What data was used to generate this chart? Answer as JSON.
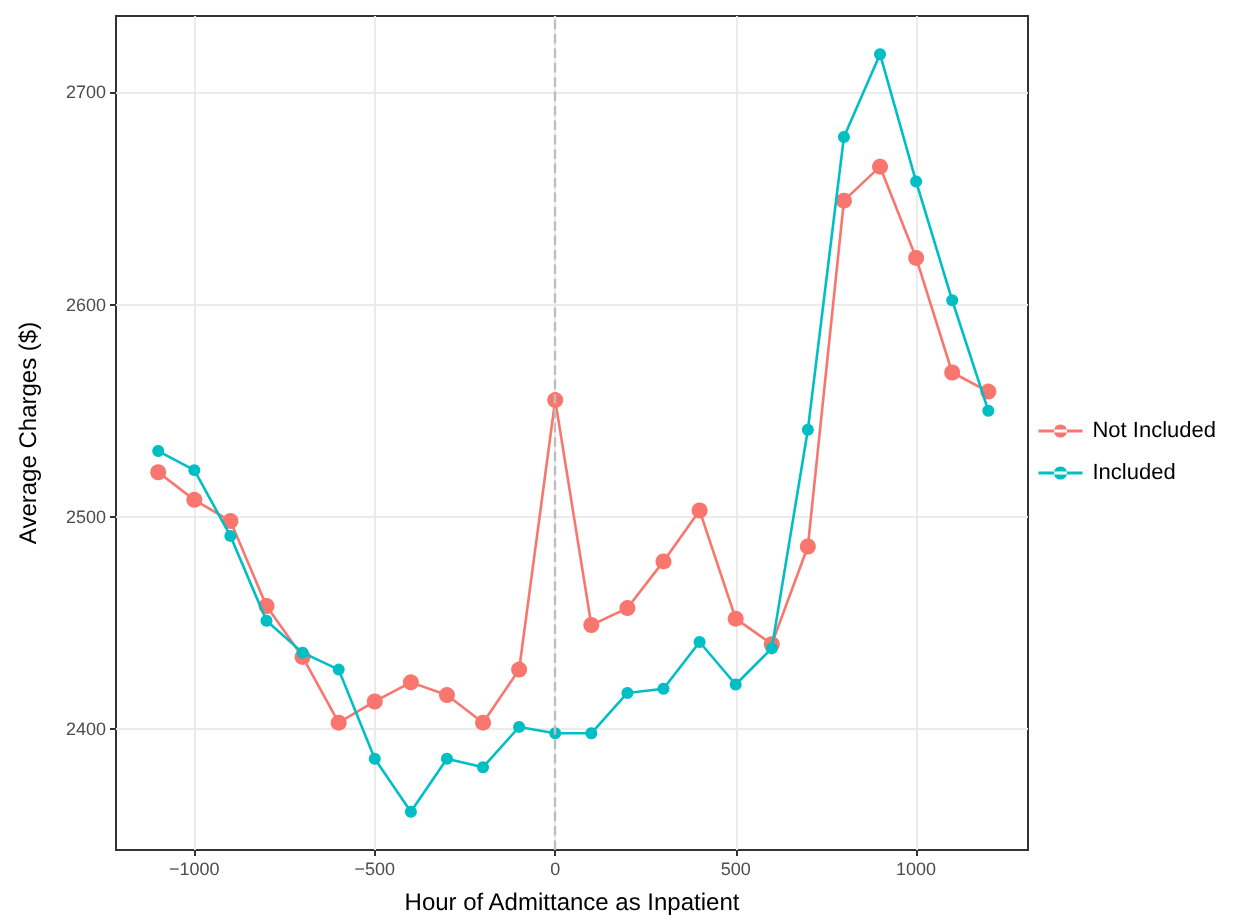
{
  "chart_data": {
    "type": "line",
    "xlabel": "Hour of Admittance as Inpatient",
    "ylabel": "Average Charges ($)",
    "x": [
      -1100,
      -1000,
      -900,
      -800,
      -700,
      -600,
      -500,
      -400,
      -300,
      -200,
      -100,
      0,
      100,
      200,
      300,
      400,
      500,
      600,
      700,
      800,
      900,
      1000,
      1100,
      1200
    ],
    "series": [
      {
        "name": "Not Included",
        "color": "#f8766d",
        "values": [
          2521,
          2508,
          2498,
          2458,
          2434,
          2403,
          2413,
          2422,
          2416,
          2403,
          2428,
          2555,
          2449,
          2457,
          2479,
          2503,
          2452,
          2440,
          2486,
          2649,
          2665,
          2622,
          2568,
          2559
        ]
      },
      {
        "name": "Included",
        "color": "#00bfc4",
        "values": [
          2531,
          2522,
          2491,
          2451,
          2436,
          2428,
          2386,
          2361,
          2386,
          2382,
          2401,
          2398,
          2398,
          2417,
          2419,
          2441,
          2421,
          2438,
          2541,
          2679,
          2718,
          2658,
          2602,
          2550
        ]
      }
    ],
    "xlim": [
      -1217,
      1310
    ],
    "ylim": [
      2343,
      2736
    ],
    "xticks": [
      -1000,
      -500,
      0,
      500,
      1000
    ],
    "yticks": [
      2400,
      2500,
      2600,
      2700
    ],
    "ref_lines": [
      {
        "axis": "x",
        "value": 0,
        "color": "#bebebe",
        "line_style": "dashed"
      }
    ],
    "grid": true,
    "legend": "right",
    "marker": "circle",
    "line_style": "solid"
  }
}
